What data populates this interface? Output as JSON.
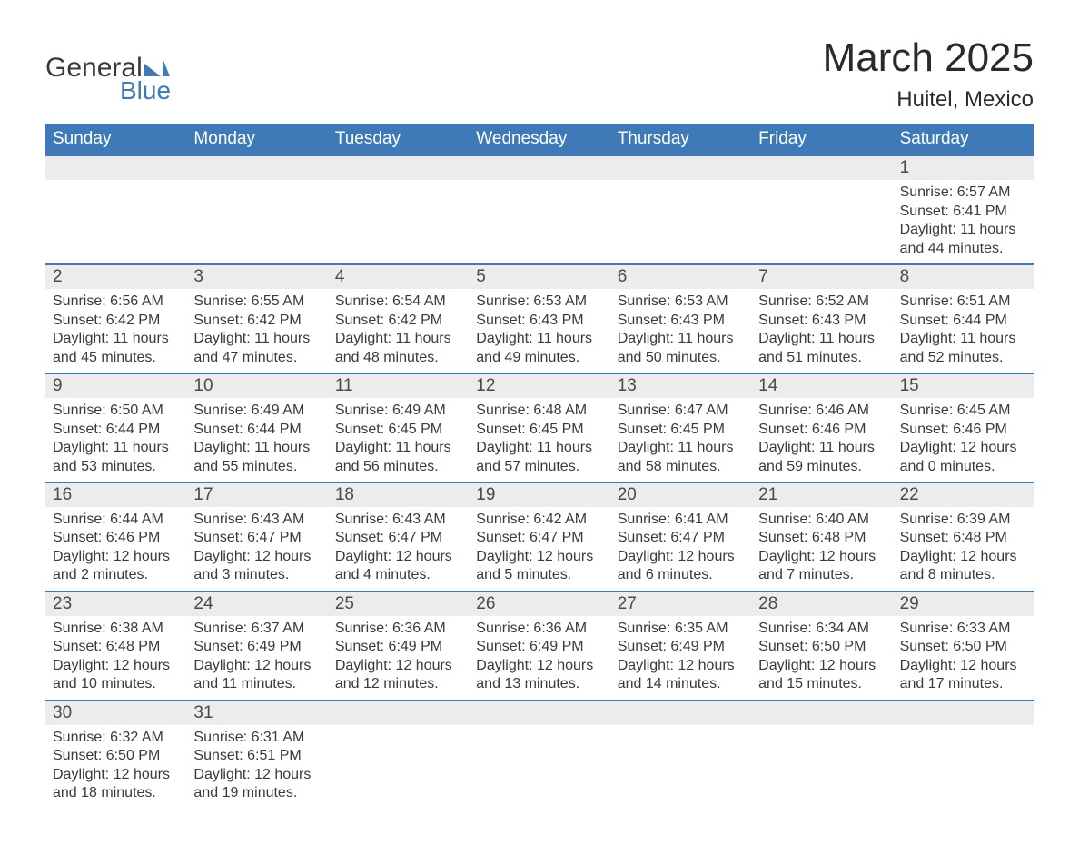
{
  "logo": {
    "text1": "General",
    "text2": "Blue",
    "shape_color": "#3e7ab8"
  },
  "title": {
    "month": "March 2025",
    "location": "Huitel, Mexico"
  },
  "colors": {
    "header_bg": "#3e7ab8",
    "header_text": "#ffffff",
    "daynum_bg": "#ececec",
    "row_border": "#3e7ab8",
    "body_text": "#3a3a3a"
  },
  "day_headers": [
    "Sunday",
    "Monday",
    "Tuesday",
    "Wednesday",
    "Thursday",
    "Friday",
    "Saturday"
  ],
  "weeks": [
    [
      null,
      null,
      null,
      null,
      null,
      null,
      {
        "num": "1",
        "sunrise": "Sunrise: 6:57 AM",
        "sunset": "Sunset: 6:41 PM",
        "dl1": "Daylight: 11 hours",
        "dl2": "and 44 minutes."
      }
    ],
    [
      {
        "num": "2",
        "sunrise": "Sunrise: 6:56 AM",
        "sunset": "Sunset: 6:42 PM",
        "dl1": "Daylight: 11 hours",
        "dl2": "and 45 minutes."
      },
      {
        "num": "3",
        "sunrise": "Sunrise: 6:55 AM",
        "sunset": "Sunset: 6:42 PM",
        "dl1": "Daylight: 11 hours",
        "dl2": "and 47 minutes."
      },
      {
        "num": "4",
        "sunrise": "Sunrise: 6:54 AM",
        "sunset": "Sunset: 6:42 PM",
        "dl1": "Daylight: 11 hours",
        "dl2": "and 48 minutes."
      },
      {
        "num": "5",
        "sunrise": "Sunrise: 6:53 AM",
        "sunset": "Sunset: 6:43 PM",
        "dl1": "Daylight: 11 hours",
        "dl2": "and 49 minutes."
      },
      {
        "num": "6",
        "sunrise": "Sunrise: 6:53 AM",
        "sunset": "Sunset: 6:43 PM",
        "dl1": "Daylight: 11 hours",
        "dl2": "and 50 minutes."
      },
      {
        "num": "7",
        "sunrise": "Sunrise: 6:52 AM",
        "sunset": "Sunset: 6:43 PM",
        "dl1": "Daylight: 11 hours",
        "dl2": "and 51 minutes."
      },
      {
        "num": "8",
        "sunrise": "Sunrise: 6:51 AM",
        "sunset": "Sunset: 6:44 PM",
        "dl1": "Daylight: 11 hours",
        "dl2": "and 52 minutes."
      }
    ],
    [
      {
        "num": "9",
        "sunrise": "Sunrise: 6:50 AM",
        "sunset": "Sunset: 6:44 PM",
        "dl1": "Daylight: 11 hours",
        "dl2": "and 53 minutes."
      },
      {
        "num": "10",
        "sunrise": "Sunrise: 6:49 AM",
        "sunset": "Sunset: 6:44 PM",
        "dl1": "Daylight: 11 hours",
        "dl2": "and 55 minutes."
      },
      {
        "num": "11",
        "sunrise": "Sunrise: 6:49 AM",
        "sunset": "Sunset: 6:45 PM",
        "dl1": "Daylight: 11 hours",
        "dl2": "and 56 minutes."
      },
      {
        "num": "12",
        "sunrise": "Sunrise: 6:48 AM",
        "sunset": "Sunset: 6:45 PM",
        "dl1": "Daylight: 11 hours",
        "dl2": "and 57 minutes."
      },
      {
        "num": "13",
        "sunrise": "Sunrise: 6:47 AM",
        "sunset": "Sunset: 6:45 PM",
        "dl1": "Daylight: 11 hours",
        "dl2": "and 58 minutes."
      },
      {
        "num": "14",
        "sunrise": "Sunrise: 6:46 AM",
        "sunset": "Sunset: 6:46 PM",
        "dl1": "Daylight: 11 hours",
        "dl2": "and 59 minutes."
      },
      {
        "num": "15",
        "sunrise": "Sunrise: 6:45 AM",
        "sunset": "Sunset: 6:46 PM",
        "dl1": "Daylight: 12 hours",
        "dl2": "and 0 minutes."
      }
    ],
    [
      {
        "num": "16",
        "sunrise": "Sunrise: 6:44 AM",
        "sunset": "Sunset: 6:46 PM",
        "dl1": "Daylight: 12 hours",
        "dl2": "and 2 minutes."
      },
      {
        "num": "17",
        "sunrise": "Sunrise: 6:43 AM",
        "sunset": "Sunset: 6:47 PM",
        "dl1": "Daylight: 12 hours",
        "dl2": "and 3 minutes."
      },
      {
        "num": "18",
        "sunrise": "Sunrise: 6:43 AM",
        "sunset": "Sunset: 6:47 PM",
        "dl1": "Daylight: 12 hours",
        "dl2": "and 4 minutes."
      },
      {
        "num": "19",
        "sunrise": "Sunrise: 6:42 AM",
        "sunset": "Sunset: 6:47 PM",
        "dl1": "Daylight: 12 hours",
        "dl2": "and 5 minutes."
      },
      {
        "num": "20",
        "sunrise": "Sunrise: 6:41 AM",
        "sunset": "Sunset: 6:47 PM",
        "dl1": "Daylight: 12 hours",
        "dl2": "and 6 minutes."
      },
      {
        "num": "21",
        "sunrise": "Sunrise: 6:40 AM",
        "sunset": "Sunset: 6:48 PM",
        "dl1": "Daylight: 12 hours",
        "dl2": "and 7 minutes."
      },
      {
        "num": "22",
        "sunrise": "Sunrise: 6:39 AM",
        "sunset": "Sunset: 6:48 PM",
        "dl1": "Daylight: 12 hours",
        "dl2": "and 8 minutes."
      }
    ],
    [
      {
        "num": "23",
        "sunrise": "Sunrise: 6:38 AM",
        "sunset": "Sunset: 6:48 PM",
        "dl1": "Daylight: 12 hours",
        "dl2": "and 10 minutes."
      },
      {
        "num": "24",
        "sunrise": "Sunrise: 6:37 AM",
        "sunset": "Sunset: 6:49 PM",
        "dl1": "Daylight: 12 hours",
        "dl2": "and 11 minutes."
      },
      {
        "num": "25",
        "sunrise": "Sunrise: 6:36 AM",
        "sunset": "Sunset: 6:49 PM",
        "dl1": "Daylight: 12 hours",
        "dl2": "and 12 minutes."
      },
      {
        "num": "26",
        "sunrise": "Sunrise: 6:36 AM",
        "sunset": "Sunset: 6:49 PM",
        "dl1": "Daylight: 12 hours",
        "dl2": "and 13 minutes."
      },
      {
        "num": "27",
        "sunrise": "Sunrise: 6:35 AM",
        "sunset": "Sunset: 6:49 PM",
        "dl1": "Daylight: 12 hours",
        "dl2": "and 14 minutes."
      },
      {
        "num": "28",
        "sunrise": "Sunrise: 6:34 AM",
        "sunset": "Sunset: 6:50 PM",
        "dl1": "Daylight: 12 hours",
        "dl2": "and 15 minutes."
      },
      {
        "num": "29",
        "sunrise": "Sunrise: 6:33 AM",
        "sunset": "Sunset: 6:50 PM",
        "dl1": "Daylight: 12 hours",
        "dl2": "and 17 minutes."
      }
    ],
    [
      {
        "num": "30",
        "sunrise": "Sunrise: 6:32 AM",
        "sunset": "Sunset: 6:50 PM",
        "dl1": "Daylight: 12 hours",
        "dl2": "and 18 minutes."
      },
      {
        "num": "31",
        "sunrise": "Sunrise: 6:31 AM",
        "sunset": "Sunset: 6:51 PM",
        "dl1": "Daylight: 12 hours",
        "dl2": "and 19 minutes."
      },
      null,
      null,
      null,
      null,
      null
    ]
  ]
}
